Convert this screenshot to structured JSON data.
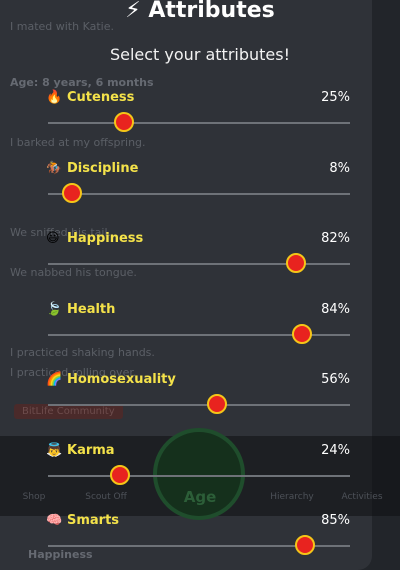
{
  "header": {
    "title": "⚡ Attributes",
    "subtitle": "Select your attributes!"
  },
  "attributes": [
    {
      "emoji": "🔥",
      "name": "Cuteness",
      "value": 25,
      "value_label": "25%"
    },
    {
      "emoji": "🏇",
      "name": "Discipline",
      "value": 8,
      "value_label": "8%"
    },
    {
      "emoji": "😃",
      "name": "Happiness",
      "value": 82,
      "value_label": "82%"
    },
    {
      "emoji": "🍃",
      "name": "Health",
      "value": 84,
      "value_label": "84%"
    },
    {
      "emoji": "🌈",
      "name": "Homosexuality",
      "value": 56,
      "value_label": "56%"
    },
    {
      "emoji": "👼",
      "name": "Karma",
      "value": 24,
      "value_label": "24%"
    },
    {
      "emoji": "🧠",
      "name": "Smarts",
      "value": 85,
      "value_label": "85%"
    }
  ],
  "background": {
    "lines": [
      {
        "text": "I mated with Katie.",
        "bold": false
      },
      {
        "text": "Age: 8 years, 6 months",
        "bold": true
      },
      {
        "text": "I barked at my offspring.",
        "bold": false
      },
      {
        "text": "We sniffed his tail.",
        "bold": false
      },
      {
        "text": "We nabbed his tongue.",
        "bold": false
      },
      {
        "text": "I practiced shaking hands.",
        "bold": false
      },
      {
        "text": "I practiced rolling over.",
        "bold": false
      }
    ],
    "community": "BitLife Community",
    "nav": [
      "Shop",
      "Scout Off",
      "Hierarchy",
      "Activities"
    ],
    "age_button": "Age",
    "footer": "Happiness"
  }
}
